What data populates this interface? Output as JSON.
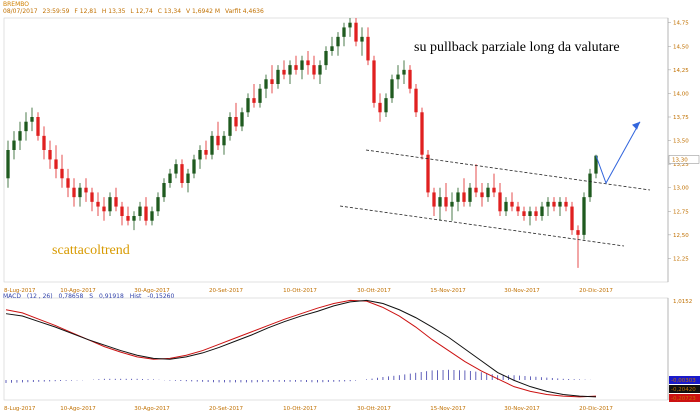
{
  "header": {
    "symbol": "BREMBO",
    "date": "08/07/2017",
    "time": "23:59:59",
    "open": "F 12,81",
    "high": "H 13,35",
    "low": "L 12,74",
    "close": "C 13,34",
    "volume": "V 1,6942 M",
    "variation": "Varfit 4,4636"
  },
  "annotation": "su pullback parziale long da valutare",
  "watermark": "scattacoltrend",
  "last_price_label": "13,30",
  "macd_legend": {
    "name": "MACD",
    "params": "(12 , 26)",
    "macd_value": "0,78658",
    "signal_label": "S",
    "signal_value": "0,91918",
    "hist_label": "Hist",
    "hist_value": "-0,15260"
  },
  "macd_right_labels": {
    "top": "1,0152",
    "hist": "-0,00303",
    "signal": "-0,20420",
    "macd": "-0,20723"
  },
  "colors": {
    "up": "#1f5a1f",
    "down": "#e02020",
    "macd_line": "#111111",
    "signal_line": "#cc1111",
    "hist": "#3a3aaa",
    "channel": "#222222",
    "arrow": "#3366dd",
    "axis_text": "#c07000"
  },
  "chart_data": [
    {
      "type": "candlestick",
      "title": "BREMBO",
      "ylim": [
        12.0,
        14.8
      ],
      "y_ticks": [
        "14,75",
        "14,50",
        "14,25",
        "14,00",
        "13,75",
        "13,50",
        "13,25",
        "13,00",
        "12,75",
        "12,50",
        "12,25"
      ],
      "x_ticks": [
        "8-Lug-2017",
        "10-Ago-2017",
        "30-Ago-2017",
        "20-Set-2017",
        "10-Ott-2017",
        "30-Ott-2017",
        "15-Nov-2017",
        "30-Nov-2017",
        "20-Dic-2017"
      ],
      "candles": [
        [
          13.1,
          13.5,
          13.0,
          13.4
        ],
        [
          13.4,
          13.6,
          13.3,
          13.5
        ],
        [
          13.5,
          13.7,
          13.4,
          13.6
        ],
        [
          13.6,
          13.8,
          13.5,
          13.7
        ],
        [
          13.7,
          13.85,
          13.6,
          13.75
        ],
        [
          13.75,
          13.8,
          13.5,
          13.55
        ],
        [
          13.55,
          13.65,
          13.3,
          13.4
        ],
        [
          13.4,
          13.5,
          13.2,
          13.3
        ],
        [
          13.3,
          13.45,
          13.1,
          13.2
        ],
        [
          13.2,
          13.35,
          13.0,
          13.1
        ],
        [
          13.1,
          13.2,
          12.9,
          13.0
        ],
        [
          13.0,
          13.1,
          12.8,
          12.9
        ],
        [
          12.9,
          13.05,
          12.8,
          13.0
        ],
        [
          13.0,
          13.1,
          12.85,
          12.95
        ],
        [
          12.95,
          13.0,
          12.75,
          12.85
        ],
        [
          12.85,
          12.95,
          12.7,
          12.8
        ],
        [
          12.8,
          12.9,
          12.65,
          12.75
        ],
        [
          12.75,
          12.95,
          12.7,
          12.9
        ],
        [
          12.9,
          13.0,
          12.75,
          12.8
        ],
        [
          12.8,
          12.85,
          12.6,
          12.7
        ],
        [
          12.7,
          12.8,
          12.6,
          12.65
        ],
        [
          12.65,
          12.75,
          12.55,
          12.7
        ],
        [
          12.7,
          12.85,
          12.65,
          12.8
        ],
        [
          12.8,
          12.9,
          12.6,
          12.65
        ],
        [
          12.65,
          12.8,
          12.6,
          12.75
        ],
        [
          12.75,
          12.95,
          12.7,
          12.9
        ],
        [
          12.9,
          13.1,
          12.85,
          13.05
        ],
        [
          13.05,
          13.2,
          13.0,
          13.15
        ],
        [
          13.15,
          13.3,
          13.1,
          13.25
        ],
        [
          13.25,
          13.3,
          13.0,
          13.05
        ],
        [
          13.05,
          13.2,
          12.95,
          13.15
        ],
        [
          13.15,
          13.35,
          13.1,
          13.3
        ],
        [
          13.3,
          13.45,
          13.2,
          13.4
        ],
        [
          13.4,
          13.5,
          13.3,
          13.35
        ],
        [
          13.35,
          13.6,
          13.3,
          13.55
        ],
        [
          13.55,
          13.7,
          13.4,
          13.45
        ],
        [
          13.45,
          13.6,
          13.35,
          13.55
        ],
        [
          13.55,
          13.8,
          13.5,
          13.75
        ],
        [
          13.75,
          13.9,
          13.6,
          13.65
        ],
        [
          13.65,
          13.85,
          13.6,
          13.8
        ],
        [
          13.8,
          14.0,
          13.75,
          13.95
        ],
        [
          13.95,
          14.1,
          13.85,
          13.9
        ],
        [
          13.9,
          14.1,
          13.85,
          14.05
        ],
        [
          14.05,
          14.2,
          13.95,
          14.15
        ],
        [
          14.15,
          14.3,
          14.0,
          14.1
        ],
        [
          14.1,
          14.3,
          14.05,
          14.25
        ],
        [
          14.25,
          14.35,
          14.15,
          14.2
        ],
        [
          14.2,
          14.35,
          14.1,
          14.3
        ],
        [
          14.3,
          14.4,
          14.2,
          14.25
        ],
        [
          14.25,
          14.4,
          14.15,
          14.35
        ],
        [
          14.35,
          14.45,
          14.2,
          14.3
        ],
        [
          14.3,
          14.4,
          14.15,
          14.2
        ],
        [
          14.2,
          14.35,
          14.1,
          14.3
        ],
        [
          14.3,
          14.5,
          14.25,
          14.45
        ],
        [
          14.45,
          14.6,
          14.4,
          14.5
        ],
        [
          14.5,
          14.65,
          14.4,
          14.6
        ],
        [
          14.6,
          14.75,
          14.5,
          14.7
        ],
        [
          14.7,
          14.8,
          14.6,
          14.75
        ],
        [
          14.75,
          14.8,
          14.5,
          14.55
        ],
        [
          14.55,
          14.7,
          14.4,
          14.6
        ],
        [
          14.6,
          14.7,
          14.3,
          14.35
        ],
        [
          14.35,
          14.4,
          13.85,
          13.9
        ],
        [
          13.9,
          14.0,
          13.7,
          13.8
        ],
        [
          13.8,
          14.0,
          13.75,
          13.95
        ],
        [
          13.95,
          14.2,
          13.9,
          14.15
        ],
        [
          14.15,
          14.3,
          14.05,
          14.2
        ],
        [
          14.2,
          14.35,
          14.1,
          14.25
        ],
        [
          14.25,
          14.3,
          14.0,
          14.05
        ],
        [
          14.05,
          14.1,
          13.75,
          13.8
        ],
        [
          13.8,
          13.85,
          13.3,
          13.35
        ],
        [
          13.35,
          13.4,
          12.9,
          12.95
        ],
        [
          12.95,
          13.0,
          12.7,
          12.8
        ],
        [
          12.8,
          13.0,
          12.65,
          12.9
        ],
        [
          12.9,
          13.05,
          12.75,
          12.8
        ],
        [
          12.8,
          12.95,
          12.65,
          12.85
        ],
        [
          12.85,
          13.0,
          12.75,
          12.95
        ],
        [
          12.95,
          13.1,
          12.8,
          12.85
        ],
        [
          12.85,
          13.05,
          12.8,
          13.0
        ],
        [
          13.0,
          13.25,
          12.9,
          12.95
        ],
        [
          12.95,
          13.05,
          12.8,
          12.9
        ],
        [
          12.9,
          13.05,
          12.85,
          13.0
        ],
        [
          13.0,
          13.15,
          12.9,
          12.95
        ],
        [
          12.95,
          13.05,
          12.7,
          12.75
        ],
        [
          12.75,
          12.9,
          12.7,
          12.85
        ],
        [
          12.85,
          12.95,
          12.75,
          12.8
        ],
        [
          12.8,
          12.85,
          12.7,
          12.75
        ],
        [
          12.75,
          12.8,
          12.65,
          12.7
        ],
        [
          12.7,
          12.8,
          12.6,
          12.75
        ],
        [
          12.75,
          12.8,
          12.65,
          12.7
        ],
        [
          12.7,
          12.85,
          12.65,
          12.8
        ],
        [
          12.8,
          12.9,
          12.7,
          12.85
        ],
        [
          12.85,
          12.9,
          12.75,
          12.8
        ],
        [
          12.8,
          12.9,
          12.7,
          12.85
        ],
        [
          12.85,
          12.9,
          12.75,
          12.8
        ],
        [
          12.8,
          12.85,
          12.5,
          12.55
        ],
        [
          12.55,
          12.6,
          12.15,
          12.5
        ],
        [
          12.5,
          12.95,
          12.45,
          12.9
        ],
        [
          12.9,
          13.2,
          12.85,
          13.15
        ],
        [
          13.15,
          13.35,
          13.1,
          13.34
        ]
      ],
      "projection": [
        [
          13.34,
          13.05
        ],
        [
          13.05,
          13.7
        ]
      ]
    },
    {
      "type": "line",
      "title": "MACD (12 , 26)",
      "ylim": [
        -0.25,
        1.05
      ],
      "series": [
        {
          "name": "MACD",
          "values": [
            0.85,
            0.82,
            0.75,
            0.68,
            0.6,
            0.52,
            0.45,
            0.38,
            0.32,
            0.28,
            0.27,
            0.3,
            0.35,
            0.42,
            0.5,
            0.58,
            0.67,
            0.75,
            0.82,
            0.88,
            0.95,
            1.0,
            1.02,
            0.98,
            0.9,
            0.8,
            0.68,
            0.55,
            0.4,
            0.25,
            0.1,
            0.0,
            -0.08,
            -0.14,
            -0.18,
            -0.2,
            -0.21
          ]
        },
        {
          "name": "Signal",
          "values": [
            0.9,
            0.86,
            0.78,
            0.7,
            0.61,
            0.52,
            0.43,
            0.36,
            0.3,
            0.27,
            0.28,
            0.32,
            0.38,
            0.46,
            0.54,
            0.62,
            0.7,
            0.78,
            0.85,
            0.92,
            0.98,
            1.02,
            1.01,
            0.93,
            0.82,
            0.68,
            0.52,
            0.38,
            0.24,
            0.12,
            0.02,
            -0.08,
            -0.14,
            -0.18,
            -0.2,
            -0.21,
            -0.2
          ]
        },
        {
          "name": "Hist",
          "values": [
            -0.05,
            -0.04,
            -0.03,
            -0.02,
            -0.01,
            0.0,
            0.02,
            0.02,
            0.02,
            0.01,
            -0.01,
            -0.02,
            -0.03,
            -0.04,
            -0.04,
            -0.04,
            -0.03,
            -0.03,
            -0.03,
            -0.04,
            -0.03,
            -0.02,
            0.01,
            0.05,
            0.08,
            0.12,
            0.16,
            0.17,
            0.16,
            0.13,
            0.08,
            0.08,
            0.06,
            0.04,
            0.02,
            0.01,
            -0.003
          ]
        }
      ]
    }
  ]
}
